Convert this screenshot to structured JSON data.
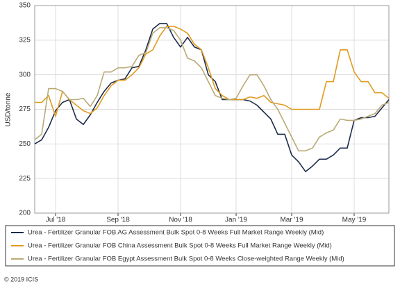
{
  "chart_data": {
    "type": "line",
    "y_label": "USD/tonne",
    "categories": [
      null,
      null,
      null,
      "Jul '18",
      null,
      null,
      null,
      null,
      null,
      null,
      null,
      null,
      "Sep '18",
      null,
      null,
      null,
      null,
      null,
      null,
      null,
      null,
      "Nov '18",
      null,
      null,
      null,
      null,
      null,
      null,
      null,
      "Jan '19",
      null,
      null,
      null,
      null,
      null,
      null,
      null,
      "Mar '19",
      null,
      null,
      null,
      null,
      null,
      null,
      null,
      null,
      "May '19",
      null,
      null,
      null,
      null,
      null
    ],
    "ylim": [
      200,
      350
    ],
    "yticks": [
      200,
      225,
      250,
      275,
      300,
      325,
      350
    ],
    "grid": true,
    "legend": "bottom",
    "series": [
      {
        "name": "Urea - Fertilizer Granular FOB AG Assessment Bulk Spot 0-8 Weeks Full Market Range Weekly (Mid)",
        "color": "#1c2b4b",
        "values": [
          250,
          253,
          262,
          274,
          280,
          282,
          268,
          264,
          271,
          280,
          288,
          294,
          296,
          297,
          305,
          306,
          318,
          333,
          337,
          337,
          327,
          320,
          327,
          320,
          318,
          300,
          295,
          282,
          282,
          282,
          282,
          281,
          278,
          273,
          268,
          257,
          257,
          242,
          237,
          230,
          234,
          239,
          239,
          242,
          247,
          247,
          267,
          269,
          269,
          270,
          276,
          282
        ]
      },
      {
        "name": "Urea - Fertilizer Granular FOB China Assessment Bulk Spot 0-8 Weeks Full Market Range Weekly (Mid)",
        "color": "#e09a1e",
        "values": [
          280,
          280,
          285,
          270,
          288,
          282,
          278,
          274,
          272,
          276,
          285,
          292,
          296,
          296,
          300,
          305,
          315,
          318,
          328,
          335,
          335,
          333,
          330,
          322,
          318,
          305,
          290,
          285,
          282,
          282,
          282,
          284,
          283,
          285,
          280,
          279,
          278,
          275,
          275,
          275,
          275,
          275,
          295,
          295,
          318,
          318,
          302,
          295,
          295,
          287,
          287,
          283
        ]
      },
      {
        "name": "Urea - Fertilizer Granular FOB Egypt Assessment Bulk Spot 0-8 Weeks Close-weighted Range Weekly (Mid)",
        "color": "#b9aa74",
        "values": [
          253,
          257,
          290,
          290,
          288,
          282,
          282,
          283,
          277,
          285,
          302,
          302,
          305,
          305,
          306,
          314,
          316,
          330,
          334,
          334,
          332,
          325,
          312,
          310,
          305,
          295,
          285,
          283,
          282,
          283,
          292,
          300,
          300,
          292,
          282,
          275,
          265,
          255,
          245,
          245,
          247,
          255,
          258,
          260,
          268,
          267,
          267,
          268,
          270,
          272,
          278,
          280
        ]
      }
    ],
    "source": "© 2019 ICIS"
  }
}
